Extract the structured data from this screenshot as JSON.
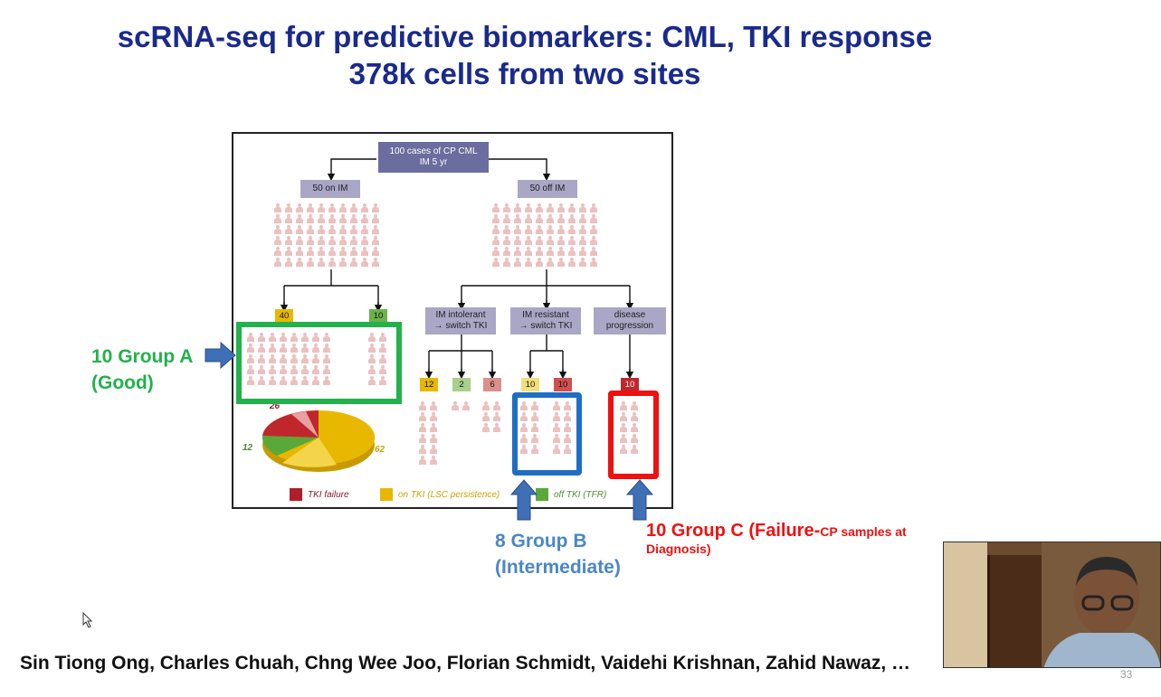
{
  "slide": {
    "title_line1": "scRNA-seq for predictive biomarkers: CML, TKI response",
    "title_line2": "378k cells from two sites",
    "authors": "Sin Tiong Ong, Charles Chuah, Chng Wee Joo, Florian Schmidt, Vaidehi Krishnan, Zahid Nawaz, …",
    "page_number": "33"
  },
  "diagram": {
    "top_box_line1": "100 cases of CP CML",
    "top_box_line2": "IM 5 yr",
    "on_im": "50 on IM",
    "off_im": "50 off IM",
    "on_counts": [
      "40",
      "10"
    ],
    "branches": [
      {
        "line1": "IM intolerant",
        "line2": "→ switch TKI"
      },
      {
        "line1": "IM resistant",
        "line2": "→ switch TKI"
      },
      {
        "line1": "disease",
        "line2": "progression"
      }
    ],
    "branch_counts": [
      "12",
      "2",
      "6",
      "10",
      "10",
      "10"
    ],
    "pie": {
      "labels": [
        "26",
        "12",
        "62"
      ],
      "colors": [
        "#c0272d",
        "#5aa83a",
        "#e8b800"
      ]
    },
    "legend": [
      {
        "label": "TKI failure",
        "color": "#b01e2e",
        "text_color": "#8a1c2a"
      },
      {
        "label": "on TKI (LSC persistence)",
        "color": "#e8b800",
        "text_color": "#c9a400"
      },
      {
        "label": "off TKI (TFR)",
        "color": "#5aa83a",
        "text_color": "#4a8f2e"
      }
    ]
  },
  "annotations": {
    "group_a_line1": "10 Group A",
    "group_a_line2": "(Good)",
    "group_b_line1": "8 Group B",
    "group_b_line2": "(Intermediate)",
    "group_c_main": "10 Group C (Failure-",
    "group_c_small": "CP samples at",
    "group_c_line2": "Diagnosis)",
    "colors": {
      "group_a": "#22b14c",
      "group_b": "#4a86c8",
      "group_c": "#ee1111",
      "arrow": "#3f6fb5"
    }
  },
  "webcam": {
    "icon": "person-video-icon"
  }
}
